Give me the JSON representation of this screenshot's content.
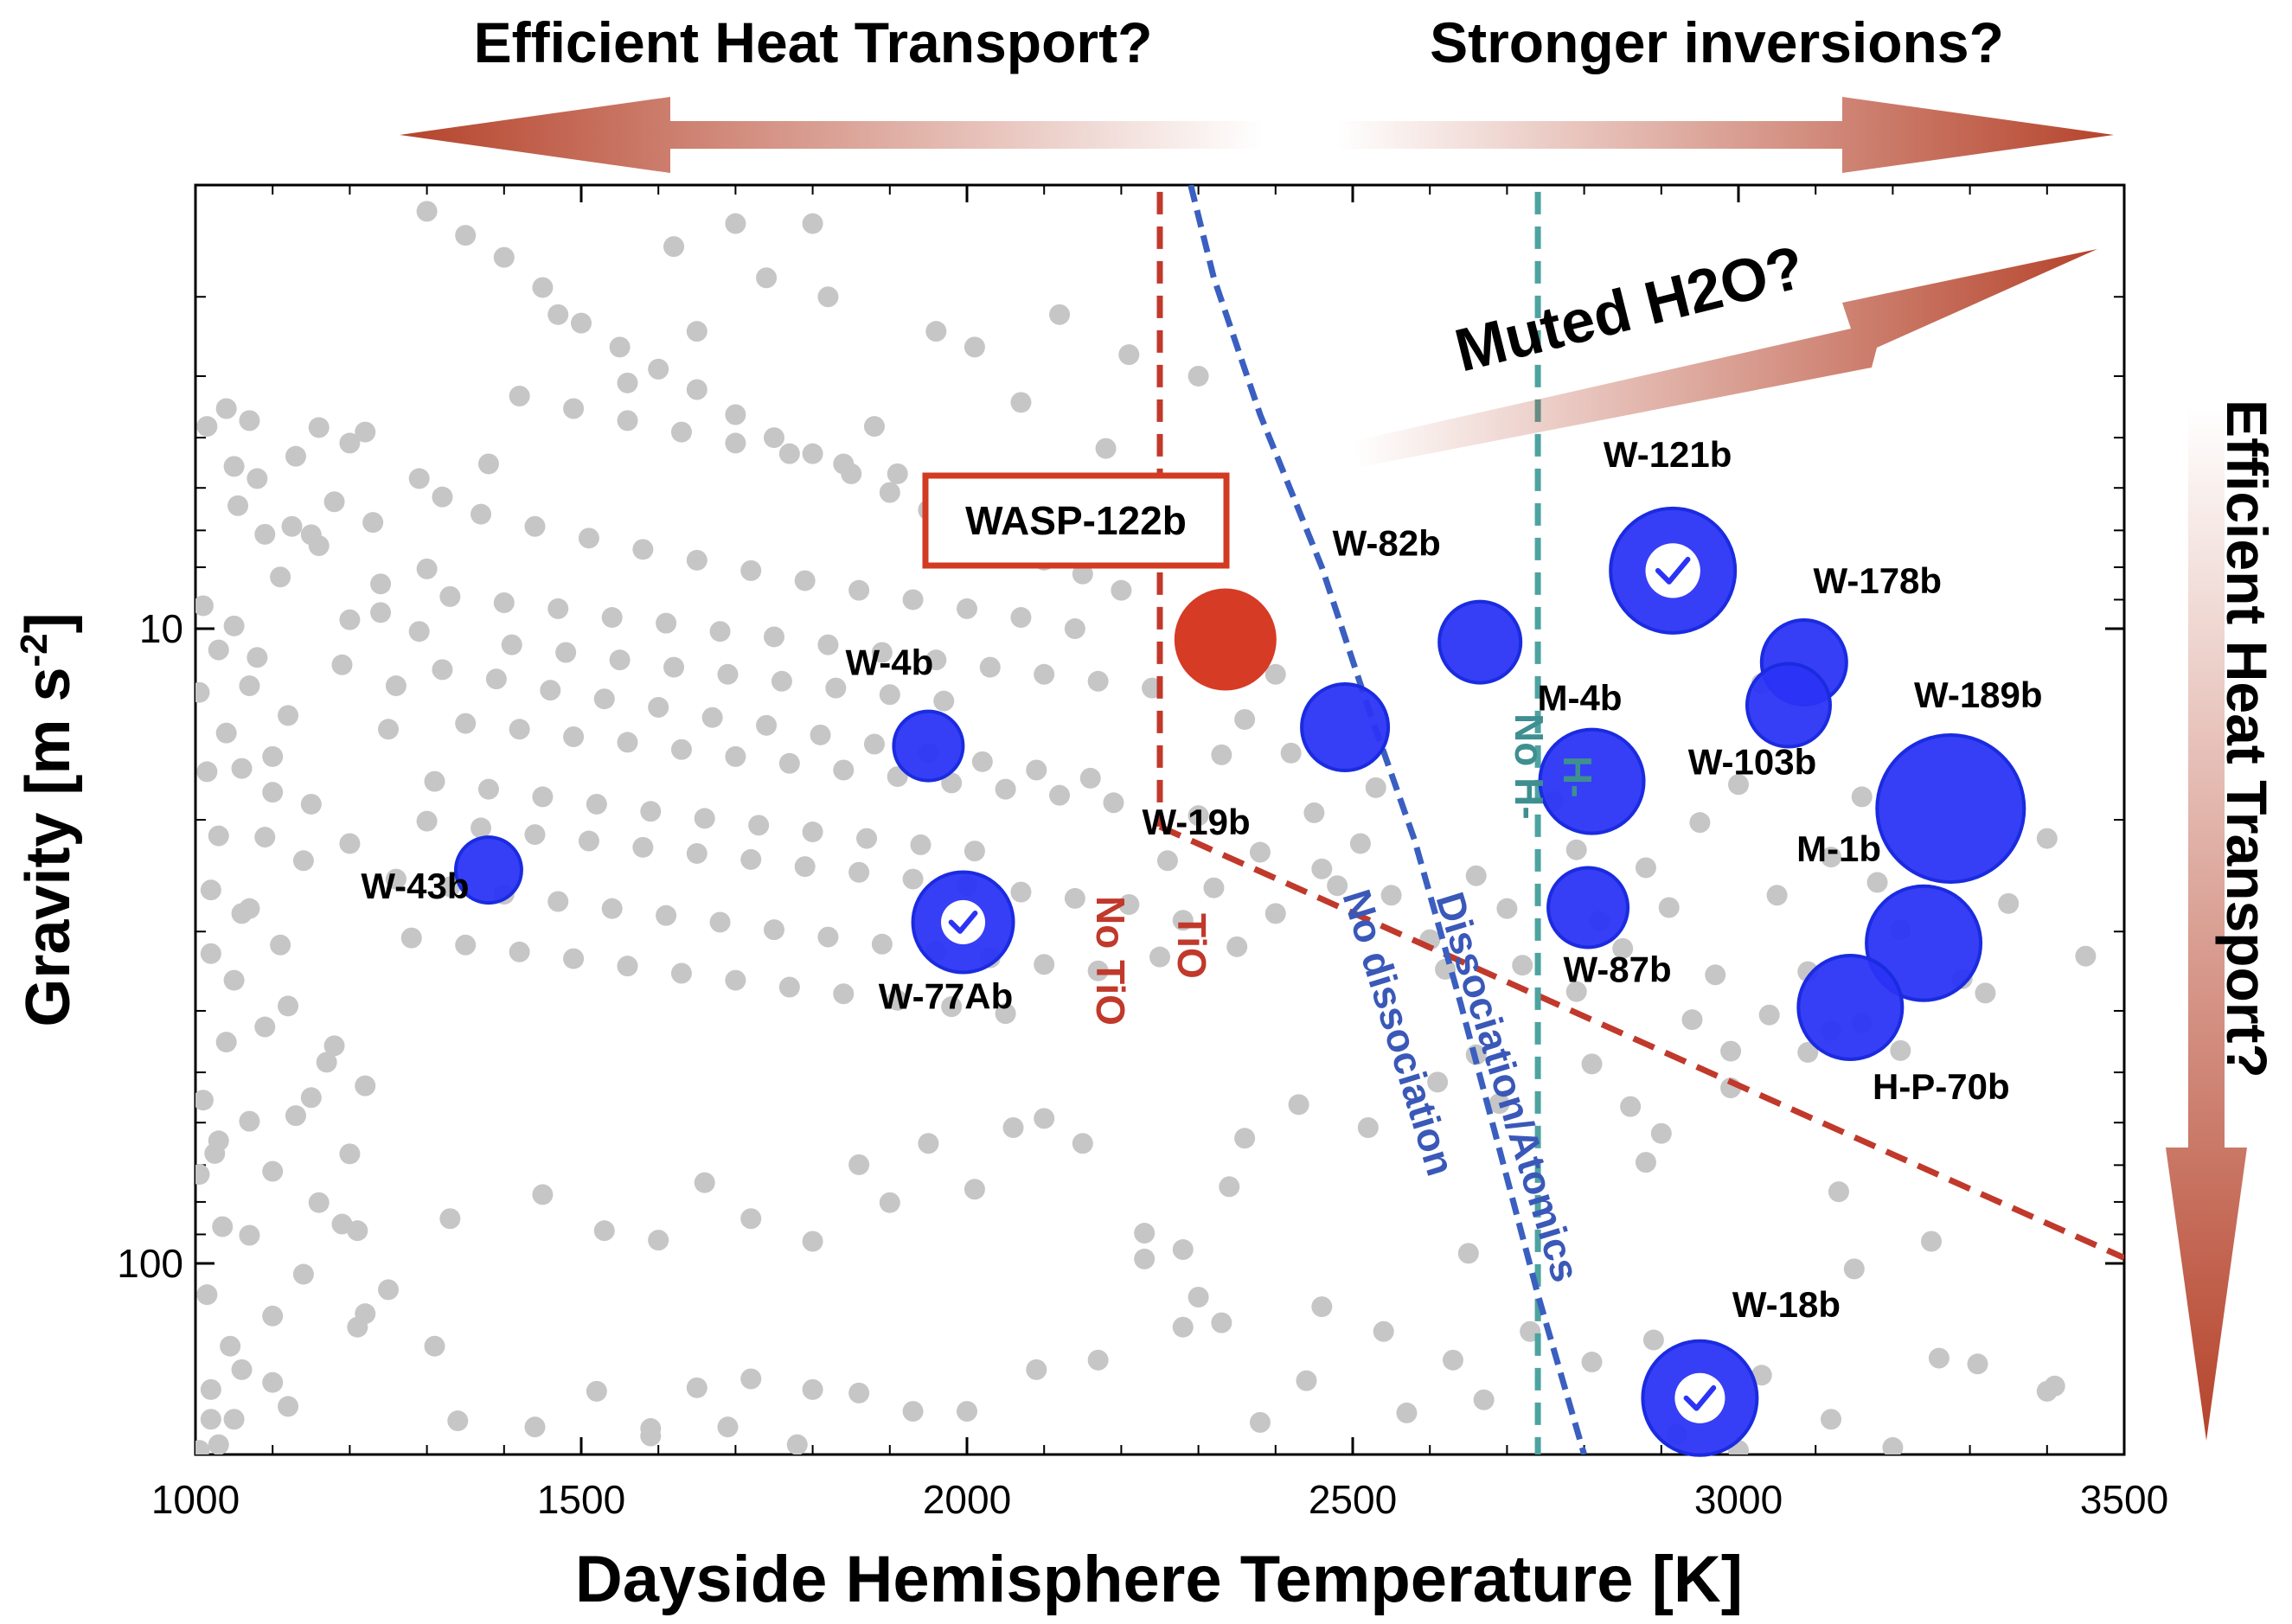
{
  "chart_data": {
    "type": "scatter",
    "xlabel": "Dayside Hemisphere Temperature [K]",
    "ylabel": "Gravity [m s-2]",
    "ylabel_main": "Gravity [m s",
    "ylabel_sup": "-2",
    "ylabel_end": "]",
    "xlim": [
      1000,
      3500
    ],
    "ylim": [
      200,
      2
    ],
    "yscale": "log",
    "yaxis_inverted": true,
    "xticks": [
      1000,
      1500,
      2000,
      2500,
      3000,
      3500
    ],
    "xtick_labels": [
      "1000",
      "1500",
      "2000",
      "2500",
      "3000",
      "3500"
    ],
    "yticks": [
      10,
      100
    ],
    "ytick_labels": [
      "10",
      "100"
    ],
    "grid": false,
    "top_arrows": [
      {
        "label": "Efficient Heat Transport?",
        "direction": "left"
      },
      {
        "label": "Stronger inversions?",
        "direction": "right"
      }
    ],
    "diagonal_arrow_label": "Muted H2O?",
    "right_arrow_label": "Efficient Heat Transport?",
    "highlight_box_label": "WASP-122b",
    "boundary_labels": {
      "tio": "TiO",
      "no_tio": "No TiO",
      "h_minus": "H-",
      "no_h_minus": "No H-",
      "dissociation": "Dissociation/Atomics",
      "no_dissociation": "No dissociation"
    },
    "boundaries": {
      "tio_vertical_x": 2250,
      "tio_vertical_y": [
        2.05,
        20.5
      ],
      "tio_sloped": {
        "from": [
          2250,
          20.5
        ],
        "to": [
          3500,
          98
        ]
      },
      "h_minus_x": 2740,
      "h_minus_y": [
        2.05,
        200
      ],
      "dissociation_curve": [
        [
          2290,
          2
        ],
        [
          2320,
          2.8
        ],
        [
          2380,
          4.6
        ],
        [
          2460,
          8
        ],
        [
          2520,
          13.3
        ],
        [
          2580,
          21.5
        ],
        [
          2640,
          39
        ],
        [
          2690,
          66
        ],
        [
          2740,
          112
        ],
        [
          2800,
          200
        ]
      ]
    },
    "highlight_planet": {
      "name": "WASP-122b",
      "x": 2335,
      "y": 10.4,
      "color": "#d63b25"
    },
    "named_planets": [
      {
        "name": "W-43b",
        "x": 1380,
        "y": 24,
        "size": 38,
        "check": false
      },
      {
        "name": "W-4b",
        "x": 1950,
        "y": 15.3,
        "size": 40,
        "check": false
      },
      {
        "name": "W-77Ab",
        "x": 1995,
        "y": 29,
        "size": 58,
        "check": true
      },
      {
        "name": "W-19b",
        "x": 2490,
        "y": 14.3,
        "size": 50,
        "check": false
      },
      {
        "name": "W-82b",
        "x": 2665,
        "y": 10.5,
        "size": 47,
        "check": false
      },
      {
        "name": "W-121b",
        "x": 2915,
        "y": 8.1,
        "size": 72,
        "check": true
      },
      {
        "name": "M-4b",
        "x": 2810,
        "y": 17.4,
        "size": 60,
        "check": false
      },
      {
        "name": "W-87b",
        "x": 2805,
        "y": 27.5,
        "size": 46,
        "check": false
      },
      {
        "name": "W-178b",
        "x": 3085,
        "y": 11.3,
        "size": 49,
        "check": false
      },
      {
        "name": "W-103b",
        "x": 3065,
        "y": 13.2,
        "size": 48,
        "check": false
      },
      {
        "name": "W-189b",
        "x": 3275,
        "y": 19.2,
        "size": 85,
        "check": false
      },
      {
        "name": "M-1b",
        "x": 3240,
        "y": 31.3,
        "size": 66,
        "check": false
      },
      {
        "name": "H-P-70b",
        "x": 3145,
        "y": 39.5,
        "size": 60,
        "check": false
      },
      {
        "name": "W-18b",
        "x": 2950,
        "y": 163,
        "size": 66,
        "check": true
      }
    ],
    "background_points": [
      [
        1070,
        4.7
      ],
      [
        1130,
        5.35
      ],
      [
        1160,
        4.82
      ],
      [
        1230,
        6.8
      ],
      [
        1240,
        9.43
      ],
      [
        1290,
        10.1
      ],
      [
        1150,
        7.11
      ],
      [
        1050,
        5.55
      ],
      [
        1180,
        6.31
      ],
      [
        1110,
        8.29
      ],
      [
        1200,
        9.68
      ],
      [
        1260,
        12.3
      ],
      [
        1300,
        8.05
      ],
      [
        1250,
        14.4
      ],
      [
        1190,
        11.4
      ],
      [
        1120,
        13.7
      ],
      [
        1070,
        12.3
      ],
      [
        1030,
        10.8
      ],
      [
        1060,
        16.6
      ],
      [
        1100,
        15.9
      ],
      [
        1150,
        18.9
      ],
      [
        1200,
        21.8
      ],
      [
        1090,
        21.3
      ],
      [
        1020,
        25.8
      ],
      [
        1050,
        35.8
      ],
      [
        1070,
        27.6
      ],
      [
        1120,
        39.3
      ],
      [
        1180,
        45.4
      ],
      [
        1220,
        52.5
      ],
      [
        1150,
        54.8
      ],
      [
        1070,
        59.7
      ],
      [
        1030,
        64.1
      ],
      [
        1100,
        71.6
      ],
      [
        1190,
        86.7
      ],
      [
        1250,
        110
      ],
      [
        1210,
        88.8
      ],
      [
        1330,
        85
      ],
      [
        1450,
        77.9
      ],
      [
        1530,
        88.8
      ],
      [
        1600,
        91.9
      ],
      [
        1660,
        74.6
      ],
      [
        1720,
        85
      ],
      [
        1800,
        92.3
      ],
      [
        1860,
        69.9
      ],
      [
        1900,
        80.2
      ],
      [
        1950,
        64.7
      ],
      [
        2010,
        76.4
      ],
      [
        2060,
        61.1
      ],
      [
        2100,
        59.1
      ],
      [
        2150,
        64.7
      ],
      [
        2230,
        89.6
      ],
      [
        2280,
        95.1
      ],
      [
        2340,
        75.7
      ],
      [
        2230,
        98.4
      ],
      [
        2300,
        113
      ],
      [
        2360,
        63.5
      ],
      [
        2430,
        56.2
      ],
      [
        2520,
        61.1
      ],
      [
        2650,
        96.4
      ],
      [
        2610,
        51.8
      ],
      [
        2660,
        46.9
      ],
      [
        2690,
        56
      ],
      [
        2790,
        37.3
      ],
      [
        2810,
        48.5
      ],
      [
        2860,
        56.6
      ],
      [
        2990,
        52.9
      ],
      [
        2880,
        69.3
      ],
      [
        3120,
        43
      ],
      [
        3130,
        77.1
      ],
      [
        3250,
        92.3
      ],
      [
        3320,
        37.5
      ],
      [
        3210,
        46.2
      ],
      [
        3150,
        102
      ],
      [
        3160,
        41.8
      ],
      [
        3090,
        46.5
      ],
      [
        2900,
        62.4
      ],
      [
        1100,
        121
      ],
      [
        1220,
        120
      ],
      [
        1310,
        135
      ],
      [
        1440,
        181
      ],
      [
        1520,
        159
      ],
      [
        1590,
        182
      ],
      [
        1690,
        181
      ],
      [
        1780,
        193
      ],
      [
        1860,
        160
      ],
      [
        1930,
        171
      ],
      [
        2000,
        171
      ],
      [
        2090,
        147
      ],
      [
        2170,
        142
      ],
      [
        2280,
        126
      ],
      [
        2330,
        124
      ],
      [
        2460,
        117
      ],
      [
        2540,
        128
      ],
      [
        2630,
        142
      ],
      [
        2730,
        128
      ],
      [
        2810,
        143
      ],
      [
        2890,
        132
      ],
      [
        2920,
        186
      ],
      [
        3030,
        150
      ],
      [
        3120,
        176
      ],
      [
        1050,
        176
      ],
      [
        1100,
        154
      ],
      [
        1340,
        177
      ],
      [
        1590,
        187
      ],
      [
        1800,
        158
      ],
      [
        1650,
        157
      ],
      [
        1720,
        152
      ],
      [
        2380,
        178
      ],
      [
        2440,
        153
      ],
      [
        2570,
        172
      ],
      [
        2670,
        164
      ],
      [
        3000,
        197
      ],
      [
        3200,
        195
      ],
      [
        3260,
        141
      ],
      [
        3310,
        144
      ],
      [
        3400,
        159
      ],
      [
        3410,
        156
      ],
      [
        1300,
        2.2
      ],
      [
        1350,
        2.4
      ],
      [
        1400,
        2.6
      ],
      [
        1450,
        2.9
      ],
      [
        1500,
        3.3
      ],
      [
        1550,
        3.6
      ],
      [
        1600,
        3.9
      ],
      [
        1650,
        4.2
      ],
      [
        1700,
        4.6
      ],
      [
        1750,
        5
      ],
      [
        1800,
        5.3
      ],
      [
        1850,
        5.7
      ],
      [
        1900,
        6.1
      ],
      [
        1950,
        6.5
      ],
      [
        2000,
        6.9
      ],
      [
        2050,
        7.3
      ],
      [
        2100,
        7.8
      ],
      [
        2150,
        8.2
      ],
      [
        2200,
        8.7
      ],
      [
        1330,
        8.9
      ],
      [
        1400,
        9.1
      ],
      [
        1470,
        9.3
      ],
      [
        1540,
        9.6
      ],
      [
        1610,
        9.8
      ],
      [
        1680,
        10.1
      ],
      [
        1750,
        10.3
      ],
      [
        1820,
        10.6
      ],
      [
        1890,
        10.9
      ],
      [
        1960,
        11.2
      ],
      [
        2030,
        11.5
      ],
      [
        2100,
        11.8
      ],
      [
        2170,
        12.1
      ],
      [
        2240,
        12.4
      ],
      [
        1350,
        14.1
      ],
      [
        1420,
        14.4
      ],
      [
        1490,
        14.8
      ],
      [
        1560,
        15.1
      ],
      [
        1630,
        15.5
      ],
      [
        1700,
        15.9
      ],
      [
        1770,
        16.3
      ],
      [
        1840,
        16.7
      ],
      [
        1910,
        17.1
      ],
      [
        1980,
        17.5
      ],
      [
        2050,
        17.9
      ],
      [
        2120,
        18.3
      ],
      [
        2190,
        18.8
      ],
      [
        1300,
        20.1
      ],
      [
        1370,
        20.6
      ],
      [
        1440,
        21.1
      ],
      [
        1510,
        21.6
      ],
      [
        1580,
        22.1
      ],
      [
        1650,
        22.6
      ],
      [
        1720,
        23.1
      ],
      [
        1790,
        23.7
      ],
      [
        1860,
        24.2
      ],
      [
        1930,
        24.8
      ],
      [
        2000,
        25.4
      ],
      [
        2070,
        26
      ],
      [
        2140,
        26.6
      ],
      [
        2210,
        27.2
      ],
      [
        1320,
        11.6
      ],
      [
        1390,
        12
      ],
      [
        1460,
        12.5
      ],
      [
        1530,
        12.9
      ],
      [
        1600,
        13.3
      ],
      [
        1670,
        13.8
      ],
      [
        1740,
        14.2
      ],
      [
        1810,
        14.7
      ],
      [
        1880,
        15.2
      ],
      [
        1950,
        15.7
      ],
      [
        2020,
        16.2
      ],
      [
        2090,
        16.7
      ],
      [
        2160,
        17.2
      ],
      [
        1370,
        6.6
      ],
      [
        1440,
        6.9
      ],
      [
        1510,
        7.2
      ],
      [
        1580,
        7.5
      ],
      [
        1650,
        7.8
      ],
      [
        1720,
        8.1
      ],
      [
        1790,
        8.4
      ],
      [
        1860,
        8.7
      ],
      [
        1930,
        9
      ],
      [
        2000,
        9.3
      ],
      [
        2070,
        9.6
      ],
      [
        2140,
        10
      ],
      [
        1420,
        4.3
      ],
      [
        1490,
        4.5
      ],
      [
        1560,
        4.7
      ],
      [
        1630,
        4.9
      ],
      [
        1700,
        5.1
      ],
      [
        1770,
        5.3
      ],
      [
        1840,
        5.5
      ],
      [
        1910,
        5.7
      ],
      [
        1980,
        5.9
      ],
      [
        2050,
        6.1
      ],
      [
        2120,
        6.3
      ],
      [
        1260,
        24.8
      ],
      [
        1330,
        25.5
      ],
      [
        1400,
        26.2
      ],
      [
        1470,
        26.9
      ],
      [
        1540,
        27.6
      ],
      [
        1610,
        28.3
      ],
      [
        1680,
        29
      ],
      [
        1750,
        29.8
      ],
      [
        1820,
        30.6
      ],
      [
        1890,
        31.4
      ],
      [
        1960,
        32.2
      ],
      [
        2030,
        33
      ],
      [
        2100,
        33.8
      ],
      [
        2170,
        34.6
      ],
      [
        1280,
        30.7
      ],
      [
        1350,
        31.5
      ],
      [
        1420,
        32.3
      ],
      [
        1490,
        33.1
      ],
      [
        1560,
        34
      ],
      [
        1630,
        34.9
      ],
      [
        1700,
        35.8
      ],
      [
        1770,
        36.7
      ],
      [
        1840,
        37.6
      ],
      [
        1910,
        38.5
      ],
      [
        1980,
        39.4
      ],
      [
        2050,
        40.4
      ],
      [
        1310,
        17.4
      ],
      [
        1380,
        17.9
      ],
      [
        1450,
        18.4
      ],
      [
        1520,
        18.9
      ],
      [
        1590,
        19.4
      ],
      [
        1660,
        19.9
      ],
      [
        1730,
        20.4
      ],
      [
        1800,
        20.9
      ],
      [
        1870,
        21.4
      ],
      [
        1940,
        21.9
      ],
      [
        2010,
        22.4
      ],
      [
        1410,
        10.6
      ],
      [
        1480,
        10.9
      ],
      [
        1550,
        11.2
      ],
      [
        1620,
        11.5
      ],
      [
        1690,
        11.8
      ],
      [
        1760,
        12.1
      ],
      [
        1830,
        12.4
      ],
      [
        1900,
        12.7
      ],
      [
        1970,
        13
      ],
      [
        2400,
        11.8
      ],
      [
        2420,
        15.7
      ],
      [
        2450,
        19.5
      ],
      [
        2460,
        23.9
      ],
      [
        2480,
        25.4
      ],
      [
        2510,
        21.8
      ],
      [
        2530,
        17.8
      ],
      [
        2550,
        26.3
      ],
      [
        2600,
        30.9
      ],
      [
        2620,
        34.4
      ],
      [
        2660,
        24.5
      ],
      [
        2700,
        27.6
      ],
      [
        2720,
        33.9
      ],
      [
        2760,
        18.7
      ],
      [
        2790,
        22.3
      ],
      [
        2820,
        28.9
      ],
      [
        2850,
        31.9
      ],
      [
        2880,
        23.8
      ],
      [
        2910,
        27.5
      ],
      [
        2950,
        20.2
      ],
      [
        2330,
        15.8
      ],
      [
        2360,
        13.9
      ],
      [
        2380,
        22.5
      ],
      [
        2400,
        28.1
      ],
      [
        2300,
        19.7
      ],
      [
        2320,
        25.6
      ],
      [
        2350,
        31.7
      ],
      [
        2260,
        23.2
      ],
      [
        2280,
        28.8
      ],
      [
        2250,
        32.9
      ],
      [
        3050,
        26.3
      ],
      [
        3090,
        34.7
      ],
      [
        3120,
        22.9
      ],
      [
        3160,
        18.4
      ],
      [
        3180,
        25.1
      ],
      [
        3210,
        29.8
      ],
      [
        3290,
        35.6
      ],
      [
        3350,
        27.1
      ],
      [
        3400,
        21.4
      ],
      [
        3450,
        32.8
      ],
      [
        3000,
        17.6
      ],
      [
        3030,
        12.2
      ],
      [
        2970,
        35.1
      ],
      [
        2940,
        41.3
      ],
      [
        2990,
        46.3
      ],
      [
        3040,
        40.6
      ],
      [
        1080,
        5.8
      ],
      [
        1160,
        7.4
      ],
      [
        1240,
        8.5
      ],
      [
        1320,
        6.2
      ],
      [
        1380,
        5.5
      ],
      [
        1470,
        3.2
      ],
      [
        1560,
        4.1
      ],
      [
        1650,
        3.4
      ],
      [
        1740,
        2.8
      ],
      [
        1820,
        3
      ],
      [
        1880,
        4.8
      ],
      [
        2010,
        3.6
      ],
      [
        2120,
        3.2
      ],
      [
        2210,
        3.7
      ],
      [
        2300,
        4
      ],
      [
        2180,
        5.2
      ],
      [
        2070,
        4.4
      ],
      [
        1960,
        3.4
      ],
      [
        1620,
        2.5
      ],
      [
        1700,
        2.3
      ],
      [
        1800,
        2.3
      ],
      [
        1050,
        9.9
      ],
      [
        1080,
        11.1
      ],
      [
        1040,
        14.6
      ],
      [
        1100,
        18.1
      ],
      [
        1140,
        23.2
      ],
      [
        1060,
        28.1
      ],
      [
        1110,
        31.5
      ],
      [
        1090,
        42.4
      ],
      [
        1170,
        48.2
      ],
      [
        1130,
        58.5
      ],
      [
        1200,
        67.2
      ],
      [
        1160,
        80.2
      ],
      [
        1070,
        90.3
      ],
      [
        1140,
        104
      ],
      [
        1210,
        126
      ],
      [
        1060,
        147
      ],
      [
        1120,
        168
      ],
      [
        1030,
        193
      ],
      [
        1005,
        197
      ],
      [
        1015,
        4.8
      ],
      [
        1040,
        4.5
      ],
      [
        1055,
        6.4
      ],
      [
        1090,
        7.1
      ],
      [
        1125,
        6.9
      ],
      [
        1200,
        5.1
      ],
      [
        1290,
        5.8
      ],
      [
        1220,
        4.9
      ],
      [
        1010,
        9.2
      ],
      [
        1005,
        12.6
      ],
      [
        1015,
        16.8
      ],
      [
        1030,
        21.2
      ],
      [
        1020,
        32.5
      ],
      [
        1040,
        44.8
      ],
      [
        1010,
        55.3
      ],
      [
        1025,
        67.1
      ],
      [
        1005,
        72.4
      ],
      [
        1035,
        87.5
      ],
      [
        1015,
        112
      ],
      [
        1045,
        135
      ],
      [
        1020,
        158
      ],
      [
        1020,
        176
      ]
    ]
  }
}
